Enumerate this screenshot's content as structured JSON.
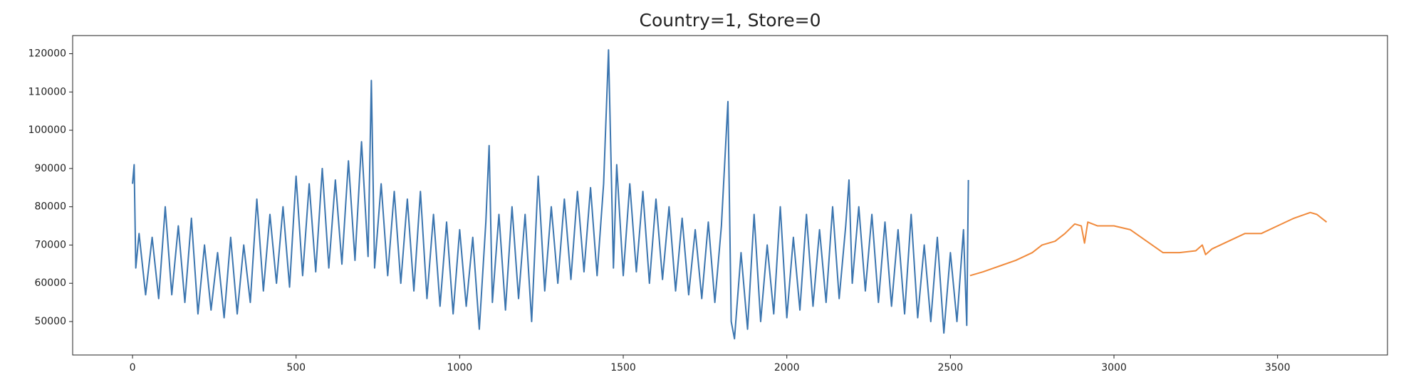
{
  "chart_data": {
    "type": "line",
    "title": "Country=1, Store=0",
    "xlim": [
      -183,
      3836
    ],
    "ylim": [
      41260,
      124740
    ],
    "xticks": [
      0,
      500,
      1000,
      1500,
      2000,
      2500,
      3000,
      3500
    ],
    "yticks": [
      50000,
      60000,
      70000,
      80000,
      90000,
      100000,
      110000,
      120000
    ],
    "grid": false,
    "series": [
      {
        "color": "#3b75af",
        "x": [
          0,
          5,
          10,
          20,
          40,
          60,
          80,
          100,
          120,
          140,
          160,
          180,
          200,
          220,
          240,
          260,
          280,
          300,
          320,
          340,
          360,
          380,
          400,
          420,
          440,
          460,
          480,
          500,
          520,
          540,
          560,
          580,
          600,
          620,
          640,
          660,
          680,
          700,
          720,
          730,
          740,
          760,
          780,
          800,
          820,
          840,
          860,
          880,
          900,
          920,
          940,
          960,
          980,
          1000,
          1020,
          1040,
          1060,
          1080,
          1090,
          1100,
          1120,
          1140,
          1160,
          1180,
          1200,
          1220,
          1240,
          1260,
          1280,
          1300,
          1320,
          1340,
          1360,
          1380,
          1400,
          1420,
          1440,
          1455,
          1470,
          1480,
          1500,
          1520,
          1540,
          1560,
          1580,
          1600,
          1620,
          1640,
          1660,
          1680,
          1700,
          1720,
          1740,
          1760,
          1780,
          1800,
          1820,
          1830,
          1840,
          1860,
          1880,
          1900,
          1920,
          1940,
          1960,
          1980,
          2000,
          2020,
          2040,
          2060,
          2080,
          2100,
          2120,
          2140,
          2160,
          2180,
          2190,
          2200,
          2220,
          2240,
          2260,
          2280,
          2300,
          2320,
          2340,
          2360,
          2380,
          2400,
          2420,
          2440,
          2460,
          2480,
          2500,
          2520,
          2540,
          2550,
          2555
        ],
        "values": [
          86000,
          91000,
          64000,
          73000,
          57000,
          72000,
          56000,
          80000,
          57000,
          75000,
          55000,
          77000,
          52000,
          70000,
          53000,
          68000,
          51000,
          72000,
          52000,
          70000,
          55000,
          82000,
          58000,
          78000,
          60000,
          80000,
          59000,
          88000,
          62000,
          86000,
          63000,
          90000,
          64000,
          87000,
          65000,
          92000,
          66000,
          97000,
          67000,
          113000,
          64000,
          86000,
          62000,
          84000,
          60000,
          82000,
          58000,
          84000,
          56000,
          78000,
          54000,
          76000,
          52000,
          74000,
          54000,
          72000,
          48000,
          76000,
          96000,
          55000,
          78000,
          53000,
          80000,
          56000,
          78000,
          50000,
          88000,
          58000,
          80000,
          60000,
          82000,
          61000,
          84000,
          63000,
          85000,
          62000,
          86000,
          121000,
          64000,
          91000,
          62000,
          86000,
          63000,
          84000,
          60000,
          82000,
          61000,
          80000,
          58000,
          77000,
          57000,
          74000,
          56000,
          76000,
          55000,
          75000,
          107500,
          50000,
          45500,
          68000,
          48000,
          78000,
          50000,
          70000,
          52000,
          80000,
          51000,
          72000,
          53000,
          78000,
          54000,
          74000,
          55000,
          80000,
          56000,
          75000,
          87000,
          60000,
          80000,
          58000,
          78000,
          55000,
          76000,
          54000,
          74000,
          52000,
          78000,
          51000,
          70000,
          50000,
          72000,
          47000,
          68000,
          50000,
          74000,
          49000,
          87000
        ]
      },
      {
        "color": "#f08a3c",
        "x": [
          2560,
          2600,
          2650,
          2700,
          2750,
          2780,
          2820,
          2850,
          2880,
          2900,
          2910,
          2920,
          2950,
          3000,
          3050,
          3100,
          3150,
          3200,
          3250,
          3270,
          3280,
          3300,
          3350,
          3400,
          3450,
          3500,
          3550,
          3600,
          3620,
          3650
        ],
        "values": [
          62000,
          63000,
          64500,
          66000,
          68000,
          70000,
          71000,
          73000,
          75500,
          75000,
          70500,
          76000,
          75000,
          75000,
          74000,
          71000,
          68000,
          68000,
          68500,
          70000,
          67500,
          69000,
          71000,
          73000,
          73000,
          75000,
          77000,
          78500,
          78000,
          76000
        ]
      }
    ]
  }
}
